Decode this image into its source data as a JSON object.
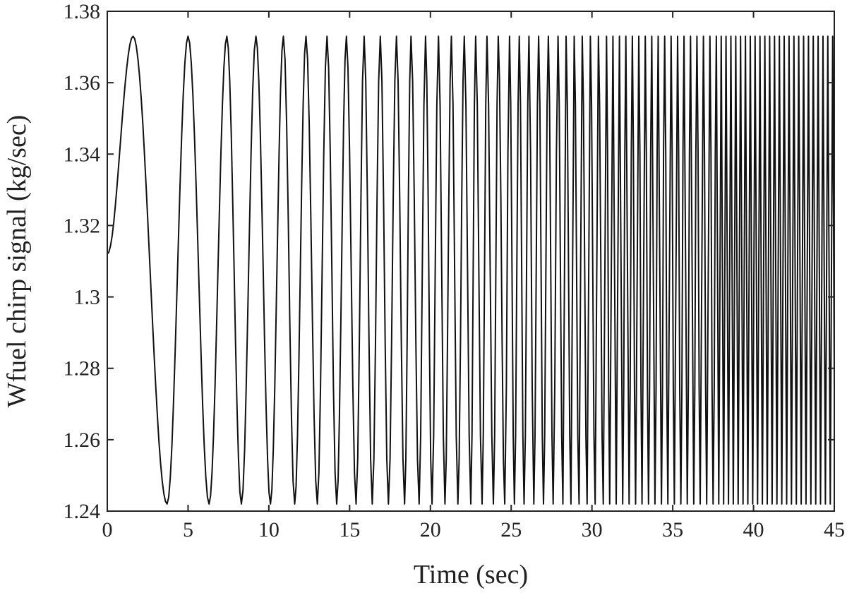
{
  "chart_data": {
    "type": "line",
    "title": "",
    "xlabel": "Time (sec)",
    "ylabel": "Wfuel chirp signal (kg/sec)",
    "xlim": [
      0,
      45
    ],
    "ylim": [
      1.24,
      1.38
    ],
    "xticks": [
      0,
      5,
      10,
      15,
      20,
      25,
      30,
      35,
      40,
      45
    ],
    "xtick_labels": [
      "0",
      "5",
      "10",
      "15",
      "20",
      "25",
      "30",
      "35",
      "40",
      "45"
    ],
    "yticks": [
      1.24,
      1.26,
      1.28,
      1.3,
      1.32,
      1.34,
      1.36,
      1.38
    ],
    "ytick_labels": [
      "1.24",
      "1.26",
      "1.28",
      "1.3",
      "1.32",
      "1.34",
      "1.36",
      "1.38"
    ],
    "grid": false,
    "legend": "none",
    "line_color": "#111111",
    "series": [
      {
        "signal": "chirp",
        "offset": 1.3075,
        "amplitude": 0.0655,
        "start_value": 1.312,
        "sample_step": 0.1,
        "peak_times": [
          1.6,
          5.0,
          7.4,
          9.2,
          10.9,
          12.3,
          13.6,
          14.8,
          15.9,
          16.9,
          17.9,
          18.8,
          19.7,
          20.5,
          21.3,
          22.1,
          22.8,
          23.5,
          24.2,
          24.9,
          25.5,
          26.1,
          26.7,
          27.3,
          27.9,
          28.4,
          28.9,
          29.4,
          29.9,
          30.4,
          30.9,
          31.3,
          31.7,
          32.1,
          32.5,
          32.9,
          33.3,
          33.7,
          34.1,
          34.5,
          34.9,
          35.3,
          35.7,
          36.1,
          36.5,
          36.9,
          37.3,
          37.7,
          38.0,
          38.3,
          38.6,
          38.9,
          39.2,
          39.5,
          39.8,
          40.1,
          40.4,
          40.7,
          41.0,
          41.3,
          41.6,
          41.9,
          42.2,
          42.5,
          42.8,
          43.1,
          43.4,
          43.7,
          44.0,
          44.3,
          44.6,
          44.9
        ],
        "valley_times": [
          3.7,
          6.3,
          8.3,
          10.1,
          11.6,
          13.0,
          14.2,
          15.4,
          16.4,
          17.4,
          18.4,
          19.3,
          20.1,
          20.9,
          21.7,
          22.5,
          23.2,
          23.9,
          24.6,
          25.2,
          25.8,
          26.4,
          27.0,
          27.6,
          28.2,
          28.7,
          29.2,
          29.7,
          30.2,
          30.7,
          31.1,
          31.5,
          31.9,
          32.3,
          32.7,
          33.1,
          33.5,
          33.9,
          34.3,
          34.7,
          35.1,
          35.5,
          35.9,
          36.3,
          36.7,
          37.1,
          37.5,
          37.85,
          38.15,
          38.45,
          38.75,
          39.05,
          39.35,
          39.65,
          39.95,
          40.25,
          40.55,
          40.85,
          41.15,
          41.45,
          41.75,
          42.05,
          42.35,
          42.65,
          42.95,
          43.25,
          43.55,
          43.85,
          44.15,
          44.45,
          44.75
        ]
      }
    ]
  }
}
